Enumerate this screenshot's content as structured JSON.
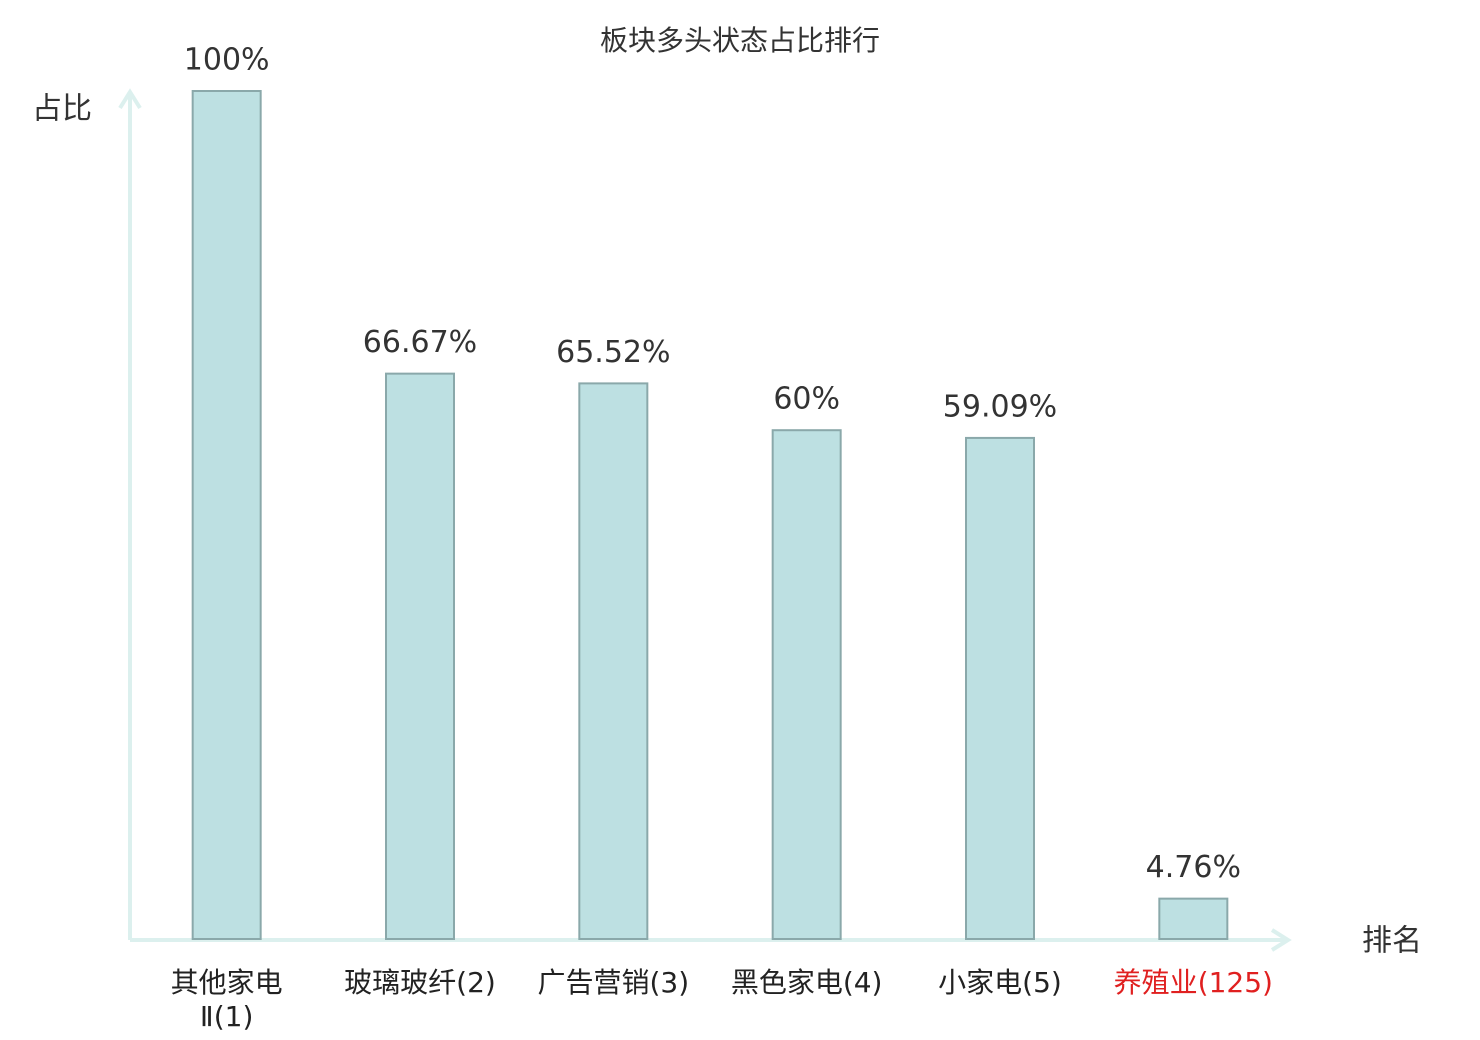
{
  "chart_data": {
    "type": "bar",
    "title": "板块多头状态占比排行",
    "y_label": "占比",
    "x_label": "排名",
    "categories": [
      "其他家电Ⅱ(1)",
      "玻璃玻纤(2)",
      "广告营销(3)",
      "黑色家电(4)",
      "小家电(5)",
      "养殖业(125)"
    ],
    "category_colors": [
      "#222222",
      "#222222",
      "#222222",
      "#222222",
      "#222222",
      "#e02020"
    ],
    "values": [
      100,
      66.67,
      65.52,
      60,
      59.09,
      4.76
    ],
    "value_labels": [
      "100%",
      "66.67%",
      "65.52%",
      "60%",
      "59.09%",
      "4.76%"
    ],
    "color": "#bde0e2",
    "ylim": [
      0,
      100
    ]
  }
}
